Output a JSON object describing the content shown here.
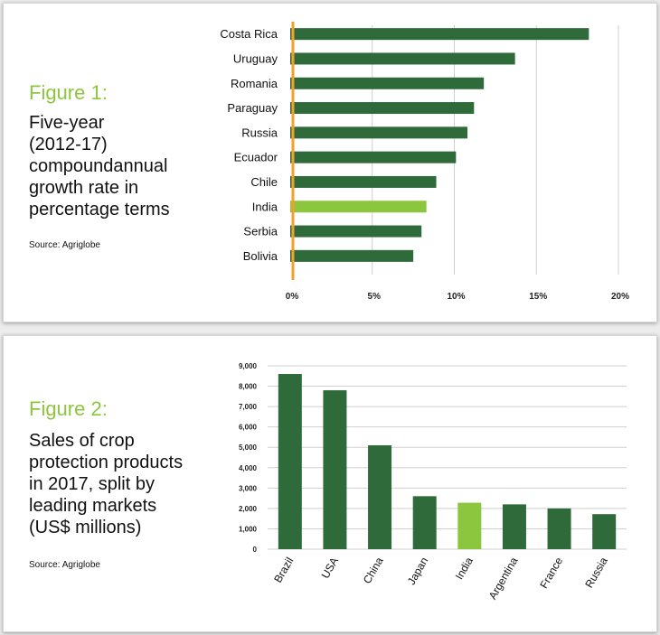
{
  "colors": {
    "bar": "#2f6a3a",
    "highlight": "#8cc63f",
    "zero_line": "#f2a12e",
    "grid": "#cfcfcf",
    "label_green": "#8cc63f"
  },
  "figure1": {
    "label": "Figure 1:",
    "description": "Five-year\n(2012-17)\ncompoundannual\ngrowth rate in\npercentage terms",
    "source": "Source: Agriglobe"
  },
  "figure2": {
    "label": "Figure 2:",
    "description": "Sales of crop\nprotection products\nin 2017, split by\nleading markets\n(US$ millions)",
    "source": "Source: Agriglobe"
  },
  "chart_data": [
    {
      "type": "bar",
      "orientation": "horizontal",
      "categories": [
        "Costa Rica",
        "Uruguay",
        "Romania",
        "Paraguay",
        "Russia",
        "Ecuador",
        "Chile",
        "India",
        "Serbia",
        "Bolivia"
      ],
      "values": [
        18.2,
        13.7,
        11.8,
        11.2,
        10.8,
        10.1,
        8.9,
        8.3,
        8.0,
        7.5
      ],
      "highlight": "India",
      "xlim": [
        0,
        20
      ],
      "xticks": [
        0,
        5,
        10,
        15,
        20
      ],
      "xtick_labels": [
        "0%",
        "5%",
        "10%",
        "15%",
        "20%"
      ],
      "grid": true
    },
    {
      "type": "bar",
      "orientation": "vertical",
      "categories": [
        "Brazil",
        "USA",
        "China",
        "Japan",
        "India",
        "Argentina",
        "France",
        "Russia"
      ],
      "values": [
        8600,
        7800,
        5100,
        2600,
        2280,
        2200,
        2000,
        1720
      ],
      "highlight": "India",
      "ylim": [
        0,
        9000
      ],
      "yticks": [
        0,
        1000,
        2000,
        3000,
        4000,
        5000,
        6000,
        7000,
        8000,
        9000
      ],
      "ytick_labels": [
        "0",
        "1,000",
        "2,000",
        "3,000",
        "4,000",
        "5,000",
        "6,000",
        "7,000",
        "8,000",
        "9,000"
      ],
      "grid": true
    }
  ]
}
